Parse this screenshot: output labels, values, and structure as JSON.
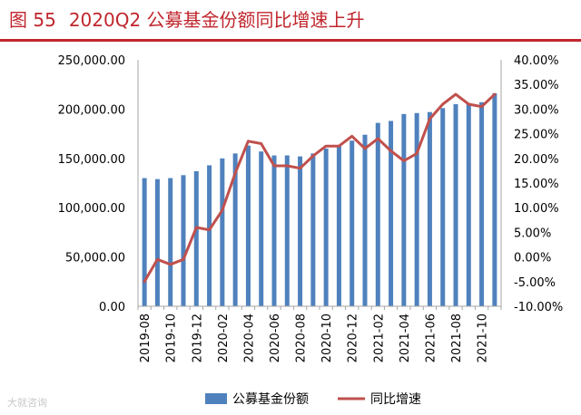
{
  "header": {
    "figure_no": "图 55",
    "title": "2020Q2 公募基金份额同比增速上升"
  },
  "watermark": "大就咨询",
  "colors": {
    "bar": "#4f81bd",
    "line": "#c0504d",
    "title": "#c0262d",
    "axis": "#a6a6a6"
  },
  "chart_data": {
    "type": "bar",
    "categories": [
      "2019-08",
      "2019-09",
      "2019-10",
      "2019-11",
      "2019-12",
      "2020-01",
      "2020-02",
      "2020-03",
      "2020-04",
      "2020-05",
      "2020-06",
      "2020-07",
      "2020-08",
      "2020-09",
      "2020-10",
      "2020-11",
      "2020-12",
      "2021-01",
      "2021-02",
      "2021-03",
      "2021-04",
      "2021-05",
      "2021-06",
      "2021-07",
      "2021-08",
      "2021-09",
      "2021-10",
      "2021-11"
    ],
    "x_tick_labels": [
      "2019-08",
      "2019-10",
      "2019-12",
      "2020-02",
      "2020-04",
      "2020-06",
      "2020-08",
      "2020-10",
      "2020-12",
      "2021-02",
      "2021-04",
      "2021-06",
      "2021-08",
      "2021-10"
    ],
    "series": [
      {
        "name": "公募基金份额",
        "type": "bar",
        "axis": "left",
        "values": [
          130000,
          129000,
          130000,
          133000,
          137000,
          143000,
          150000,
          155000,
          163000,
          157000,
          153000,
          153000,
          152000,
          155000,
          160000,
          163000,
          168000,
          174000,
          186000,
          188000,
          195000,
          196000,
          197000,
          201000,
          205000,
          205000,
          207000,
          216000
        ]
      },
      {
        "name": "同比增速",
        "type": "line",
        "axis": "right",
        "values": [
          -5.0,
          -0.5,
          -1.5,
          -0.5,
          6.0,
          5.5,
          9.5,
          17.0,
          23.5,
          23.0,
          18.5,
          18.5,
          18.0,
          20.5,
          22.5,
          22.5,
          24.5,
          22.0,
          24.0,
          21.5,
          19.5,
          21.0,
          28.0,
          31.0,
          33.0,
          31.0,
          30.5,
          33.0
        ]
      }
    ],
    "left_axis": {
      "min": 0,
      "max": 250000,
      "step": 50000,
      "tick_labels": [
        "0.00",
        "50,000.00",
        "100,000.00",
        "150,000.00",
        "200,000.00",
        "250,000.00"
      ]
    },
    "right_axis": {
      "min": -10,
      "max": 40,
      "step": 5,
      "tick_labels": [
        "-10.00%",
        "-5.00%",
        "0.00%",
        "5.00%",
        "10.00%",
        "15.00%",
        "20.00%",
        "25.00%",
        "30.00%",
        "35.00%",
        "40.00%"
      ]
    },
    "legend": {
      "placement": "bottom",
      "items": [
        {
          "label": "公募基金份额",
          "kind": "bar"
        },
        {
          "label": "同比增速",
          "kind": "line"
        }
      ]
    },
    "grid": false
  }
}
